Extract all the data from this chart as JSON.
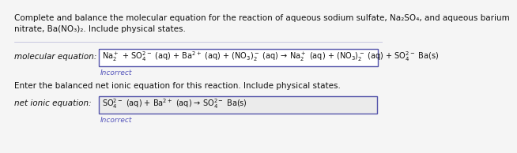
{
  "bg_color": "#f5f5f5",
  "title_line1": "Complete and balance the molecular equation for the reaction of aqueous sodium sulfate, Na₂SO₄, and aqueous barium",
  "title_line2": "nitrate, Ba(NO₃)₂. Include physical states.",
  "mol_label": "molecular equation:",
  "mol_eq": "$\\mathregular{Na_2^+}$ + $\\mathregular{SO_4^{2-}}$ (aq) + $\\mathregular{Ba^{2+}}$ (aq) + $\\mathregular{(NO_3)_2^-}$ (aq) → $\\mathregular{Na_2^+}$ (aq) + $\\mathregular{(NO_3)_2^-}$ (aq) + $\\mathregular{SO_4^{2-}}$ Ba(s)",
  "incorrect_text": "Incorrect",
  "net_prompt": "Enter the balanced net ionic equation for this reaction. Include physical states.",
  "net_label": "net ionic equation:",
  "net_eq": "$\\mathregular{SO_4^{2-}}$ (aq) + $\\mathregular{Ba^{2+}}$ (aq) → $\\mathregular{SO_4^{2-}}$ Ba(s)",
  "box_color": "#5555aa",
  "incorrect_color": "#5555bb",
  "text_color": "#111111",
  "title_fontsize": 7.5,
  "label_fontsize": 7.5,
  "eq_fontsize": 7.0,
  "incorrect_fontsize": 6.5
}
